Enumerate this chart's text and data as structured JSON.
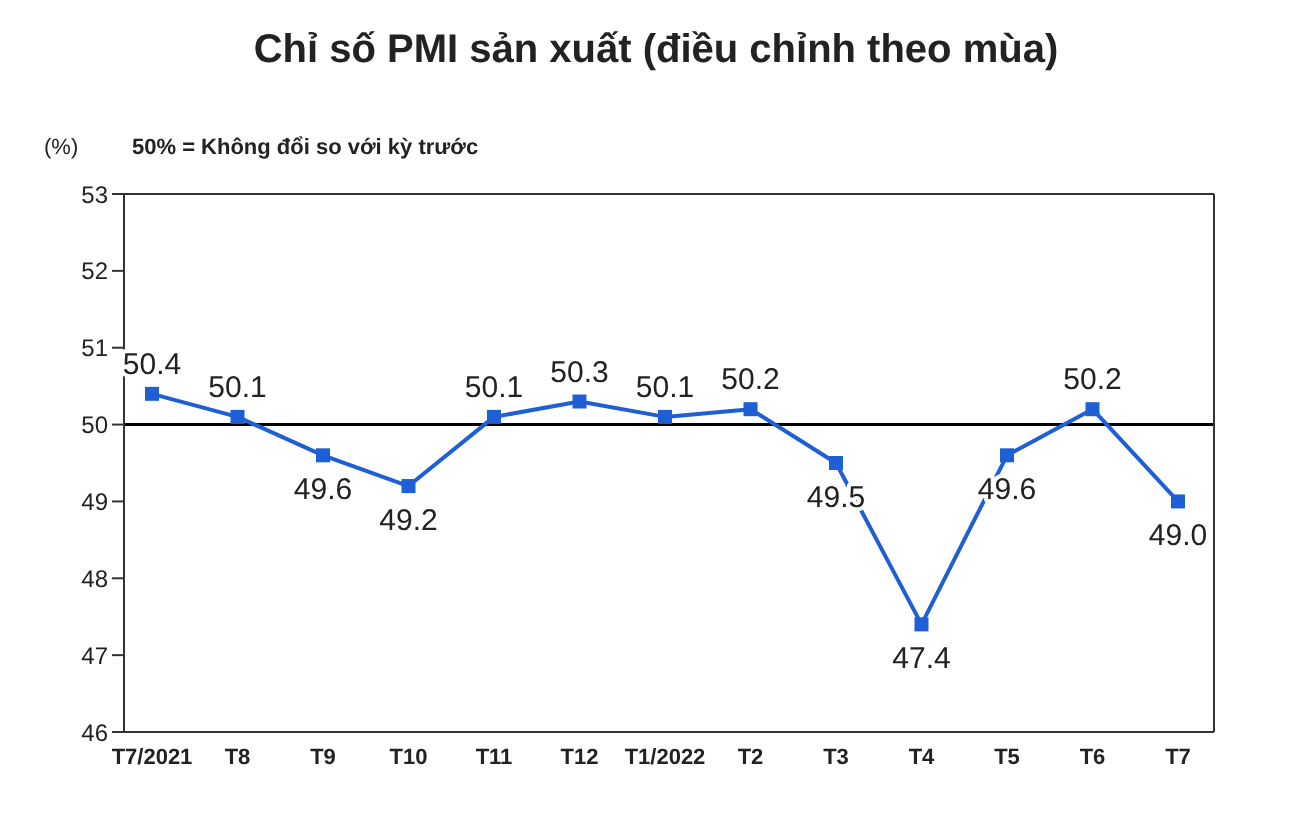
{
  "chart_data": {
    "type": "line",
    "title": "Chỉ số PMI sản xuất (điều chỉnh theo mùa)",
    "ylabel": "(%)",
    "annotations": [
      "50% = Không đổi so với kỳ trước"
    ],
    "categories": [
      "T7/2021",
      "T8",
      "T9",
      "T10",
      "T11",
      "T12",
      "T1/2022",
      "T2",
      "T3",
      "T4",
      "T5",
      "T6",
      "T7"
    ],
    "series": [
      {
        "color": "#1f5fd6",
        "values": [
          50.4,
          50.1,
          49.6,
          49.2,
          50.1,
          50.3,
          50.1,
          50.2,
          49.5,
          47.4,
          49.6,
          50.2,
          49.0
        ],
        "value_labels": [
          "50.4",
          "50.1",
          "49.6",
          "49.2",
          "50.1",
          "50.3",
          "50.1",
          "50.2",
          "49.5",
          "47.4",
          "49.6",
          "50.2",
          "49.0"
        ]
      }
    ],
    "ylim": [
      46,
      53
    ],
    "yticks": [
      46,
      47,
      48,
      49,
      50,
      51,
      52,
      53
    ],
    "ref_lines": [
      {
        "axis": "y",
        "value": 50,
        "color": "#000000"
      }
    ],
    "marker": "square",
    "line_style": "solid"
  }
}
